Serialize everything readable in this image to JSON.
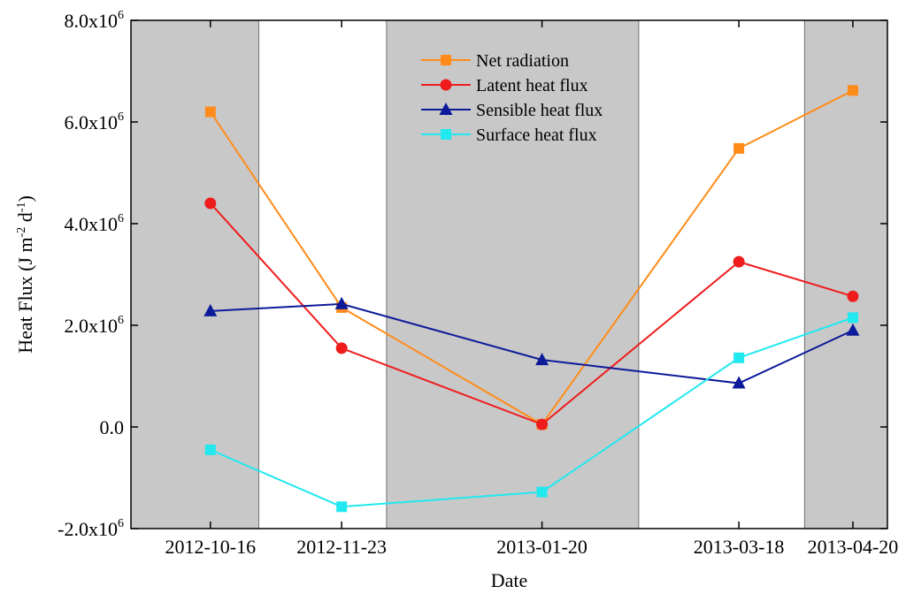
{
  "chart_data": {
    "type": "line",
    "title": "",
    "xlabel": "Date",
    "ylabel_main": "Heat Flux (J m",
    "ylabel_exp1": "-2",
    "ylabel_mid": " d",
    "ylabel_exp2": "-1",
    "ylabel_end": ")",
    "categories": [
      "2012-10-16",
      "2012-11-23",
      "2013-01-20",
      "2013-03-18",
      "2013-04-20"
    ],
    "x_days": [
      0,
      38,
      96,
      153,
      186
    ],
    "xlim": [
      -23,
      196
    ],
    "ylim": [
      -2000000,
      8000000
    ],
    "y_ticks": [
      {
        "value": -2000000,
        "mantissa": "-2.0x10",
        "exp": "6"
      },
      {
        "value": 0,
        "mantissa": "0.0",
        "exp": ""
      },
      {
        "value": 2000000,
        "mantissa": "2.0x10",
        "exp": "6"
      },
      {
        "value": 4000000,
        "mantissa": "4.0x10",
        "exp": "6"
      },
      {
        "value": 6000000,
        "mantissa": "6.0x10",
        "exp": "6"
      },
      {
        "value": 8000000,
        "mantissa": "8.0x10",
        "exp": "6"
      }
    ],
    "shaded_bands": [
      [
        -23,
        14
      ],
      [
        51,
        124
      ],
      [
        172,
        196
      ]
    ],
    "band_color": "#c8c8c8",
    "legend_position": "top-center",
    "series": [
      {
        "name": "Net radiation",
        "color": "#ff8c1a",
        "marker": "square",
        "values": [
          6200000,
          2350000,
          50000,
          5480000,
          6620000
        ]
      },
      {
        "name": "Latent heat flux",
        "color": "#ee1c1c",
        "marker": "circle",
        "values": [
          4400000,
          1550000,
          50000,
          3250000,
          2570000
        ]
      },
      {
        "name": "Sensible heat flux",
        "color": "#0d1a99",
        "marker": "triangle",
        "values": [
          2280000,
          2420000,
          1320000,
          860000,
          1900000
        ]
      },
      {
        "name": "Surface heat flux",
        "color": "#22e8f0",
        "marker": "square",
        "values": [
          -450000,
          -1570000,
          -1280000,
          1360000,
          2150000
        ]
      }
    ]
  }
}
